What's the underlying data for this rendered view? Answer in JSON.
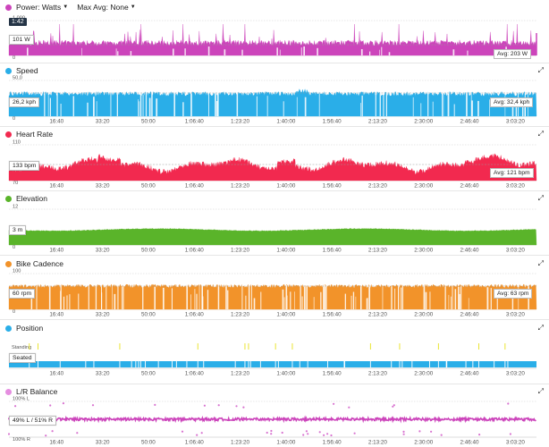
{
  "power": {
    "metric_label": "Power: Watts",
    "maxavg_label": "Max Avg: None",
    "color": "#cc44bb",
    "y_top": "1,000",
    "y_bottom": "0",
    "cursor_time": "1:42",
    "readout": "101 W",
    "avg": "Avg: 203 W"
  },
  "speed": {
    "title": "Speed",
    "color": "#2aaee8",
    "y_top": "50,0",
    "y_bottom": "0",
    "readout": "26,2 kph",
    "avg": "Avg: 32,4 kph"
  },
  "heart_rate": {
    "title": "Heart Rate",
    "color": "#f2294f",
    "y_top": "110",
    "y_bottom": "70",
    "readout": "133 bpm",
    "avg": "Avg: 121 bpm"
  },
  "elevation": {
    "title": "Elevation",
    "color": "#5ab42a",
    "y_top": "12",
    "y_bottom": "0",
    "readout": "3 m"
  },
  "cadence": {
    "title": "Bike Cadence",
    "color": "#f2932a",
    "y_top": "100",
    "y_bottom": "0",
    "readout": "60 rpm",
    "avg": "Avg: 63 rpm"
  },
  "position": {
    "title": "Position",
    "color": "#2aaee8",
    "standing_color": "#e8e21e",
    "label_standing": "Standing",
    "label_seated": "Seated",
    "readout": "Seated"
  },
  "lr_balance": {
    "title": "L/R Balance",
    "color": "#cc44bb",
    "y_top": "100% L",
    "y_bottom": "100% R",
    "readout": "49% L / 51% R"
  },
  "x_ticks": [
    "16:40",
    "33:20",
    "50:00",
    "1:06:40",
    "1:23:20",
    "1:40:00",
    "1:56:40",
    "2:13:20",
    "2:30:00",
    "2:46:40",
    "3:03:20"
  ],
  "chart_data": [
    {
      "type": "area",
      "title": "Power: Watts",
      "x_unit": "elapsed time",
      "x_range": [
        "0:00",
        "3:12:00"
      ],
      "ylim": [
        0,
        1000
      ],
      "series": [
        {
          "name": "Power: Watts",
          "average": 203
        }
      ]
    },
    {
      "type": "area",
      "title": "Speed",
      "x_range": [
        "0:00",
        "3:12:00"
      ],
      "ylim": [
        0,
        50
      ],
      "series": [
        {
          "name": "Speed",
          "average": 32.4
        }
      ]
    },
    {
      "type": "area",
      "title": "Heart Rate",
      "x_range": [
        "0:00",
        "3:12:00"
      ],
      "ylim": [
        70,
        110
      ],
      "series": [
        {
          "name": "Heart Rate",
          "average": 121
        }
      ]
    },
    {
      "type": "area",
      "title": "Elevation",
      "x_range": [
        "0:00",
        "3:12:00"
      ],
      "ylim": [
        0,
        12
      ],
      "series": [
        {
          "name": "Elevation"
        }
      ]
    },
    {
      "type": "area",
      "title": "Bike Cadence",
      "x_range": [
        "0:00",
        "3:12:00"
      ],
      "ylim": [
        0,
        100
      ],
      "series": [
        {
          "name": "Bike Cadence",
          "average": 63
        }
      ]
    },
    {
      "type": "bar",
      "title": "Position",
      "categories": [
        "Standing",
        "Seated"
      ],
      "x_range": [
        "0:00",
        "3:12:00"
      ]
    },
    {
      "type": "scatter",
      "title": "L/R Balance",
      "x_range": [
        "0:00",
        "3:12:00"
      ],
      "y_categories": [
        "100% L",
        "100% R"
      ]
    }
  ]
}
